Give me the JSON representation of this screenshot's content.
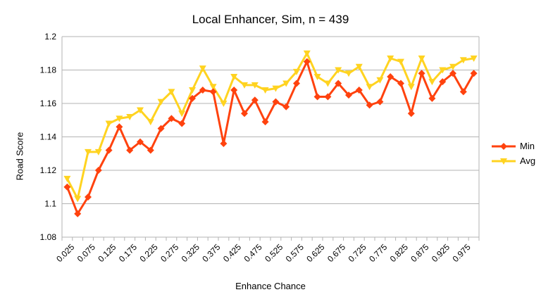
{
  "chart_data": {
    "type": "line",
    "title": "Local Enhancer, Sim, n = 439",
    "xlabel": "Enhance Chance",
    "ylabel": "Road Score",
    "ylim": [
      1.08,
      1.2
    ],
    "yticks": [
      "1.08",
      "1.1",
      "1.12",
      "1.14",
      "1.16",
      "1.18",
      "1.2"
    ],
    "grid": true,
    "legend": "right",
    "categories": [
      "0.025",
      "0.05",
      "0.075",
      "0.1",
      "0.125",
      "0.15",
      "0.175",
      "0.2",
      "0.225",
      "0.25",
      "0.275",
      "0.3",
      "0.325",
      "0.35",
      "0.375",
      "0.4",
      "0.425",
      "0.45",
      "0.475",
      "0.5",
      "0.525",
      "0.55",
      "0.575",
      "0.6",
      "0.625",
      "0.65",
      "0.675",
      "0.7",
      "0.725",
      "0.75",
      "0.775",
      "0.8",
      "0.825",
      "0.85",
      "0.875",
      "0.9",
      "0.925",
      "0.95",
      "0.975",
      "1"
    ],
    "xtick_labels": [
      "0.025",
      "",
      "0.075",
      "",
      "0.125",
      "",
      "0.175",
      "",
      "0.225",
      "",
      "0.275",
      "",
      "0.325",
      "",
      "0.375",
      "",
      "0.425",
      "",
      "0.475",
      "",
      "0.525",
      "",
      "0.575",
      "",
      "0.625",
      "",
      "0.675",
      "",
      "0.725",
      "",
      "0.775",
      "",
      "0.825",
      "",
      "0.875",
      "",
      "0.925",
      "",
      "0.975",
      ""
    ],
    "series": [
      {
        "name": "Min",
        "color": "#ff420e",
        "marker": "diamond",
        "values": [
          1.11,
          1.094,
          1.104,
          1.12,
          1.132,
          1.146,
          1.132,
          1.137,
          1.132,
          1.145,
          1.151,
          1.148,
          1.163,
          1.168,
          1.167,
          1.136,
          1.168,
          1.154,
          1.162,
          1.149,
          1.161,
          1.158,
          1.172,
          1.185,
          1.164,
          1.164,
          1.172,
          1.165,
          1.168,
          1.159,
          1.161,
          1.176,
          1.172,
          1.154,
          1.178,
          1.163,
          1.173,
          1.178,
          1.167,
          1.178
        ]
      },
      {
        "name": "Avg",
        "color": "#ffd320",
        "marker": "triangle-down",
        "values": [
          1.115,
          1.103,
          1.131,
          1.131,
          1.148,
          1.151,
          1.152,
          1.156,
          1.149,
          1.161,
          1.167,
          1.154,
          1.168,
          1.181,
          1.17,
          1.16,
          1.176,
          1.171,
          1.171,
          1.168,
          1.169,
          1.172,
          1.179,
          1.19,
          1.176,
          1.172,
          1.18,
          1.178,
          1.182,
          1.17,
          1.174,
          1.187,
          1.185,
          1.17,
          1.187,
          1.173,
          1.18,
          1.182,
          1.186,
          1.187
        ]
      }
    ]
  }
}
